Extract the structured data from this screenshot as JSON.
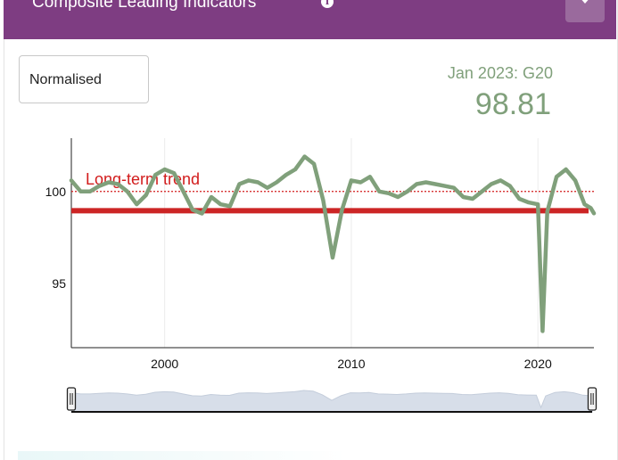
{
  "header": {
    "title": "Composite Leading Indicators",
    "info_icon": "info-icon",
    "toggle_icon": "chevron-down-icon",
    "background_color": "#7e3d82"
  },
  "controls": {
    "mode_select_value": "Normalised"
  },
  "readout": {
    "label": "Jan 2023: G20",
    "value": "98.81",
    "color": "#80a07b"
  },
  "chart_data": {
    "type": "line",
    "series": [
      {
        "color": "#80a07b",
        "points": [
          [
            1995.0,
            100.6
          ],
          [
            1995.5,
            100.0
          ],
          [
            1996.0,
            100.0
          ],
          [
            1996.5,
            100.3
          ],
          [
            1997.0,
            100.5
          ],
          [
            1997.5,
            100.4
          ],
          [
            1998.0,
            100.0
          ],
          [
            1998.5,
            99.3
          ],
          [
            1999.0,
            99.8
          ],
          [
            1999.5,
            100.9
          ],
          [
            2000.0,
            101.2
          ],
          [
            2000.5,
            101.0
          ],
          [
            2001.0,
            100.0
          ],
          [
            2001.5,
            99.0
          ],
          [
            2002.0,
            98.8
          ],
          [
            2002.5,
            99.7
          ],
          [
            2003.0,
            99.3
          ],
          [
            2003.5,
            99.2
          ],
          [
            2004.0,
            100.4
          ],
          [
            2004.5,
            100.6
          ],
          [
            2005.0,
            100.5
          ],
          [
            2005.5,
            100.2
          ],
          [
            2006.0,
            100.5
          ],
          [
            2006.5,
            100.9
          ],
          [
            2007.0,
            101.2
          ],
          [
            2007.5,
            101.9
          ],
          [
            2008.0,
            101.5
          ],
          [
            2008.5,
            99.5
          ],
          [
            2009.0,
            96.4
          ],
          [
            2009.5,
            99.0
          ],
          [
            2010.0,
            100.6
          ],
          [
            2010.5,
            100.5
          ],
          [
            2011.0,
            100.8
          ],
          [
            2011.5,
            100.0
          ],
          [
            2012.0,
            99.9
          ],
          [
            2012.5,
            99.7
          ],
          [
            2013.0,
            100.0
          ],
          [
            2013.5,
            100.4
          ],
          [
            2014.0,
            100.5
          ],
          [
            2014.5,
            100.4
          ],
          [
            2015.0,
            100.3
          ],
          [
            2015.5,
            100.2
          ],
          [
            2016.0,
            99.7
          ],
          [
            2016.5,
            99.6
          ],
          [
            2017.0,
            100.0
          ],
          [
            2017.5,
            100.4
          ],
          [
            2018.0,
            100.6
          ],
          [
            2018.5,
            100.3
          ],
          [
            2019.0,
            99.6
          ],
          [
            2019.5,
            99.4
          ],
          [
            2020.0,
            99.3
          ],
          [
            2020.25,
            92.4
          ],
          [
            2020.5,
            98.9
          ],
          [
            2021.0,
            100.8
          ],
          [
            2021.5,
            101.2
          ],
          [
            2022.0,
            100.6
          ],
          [
            2022.5,
            99.3
          ],
          [
            2022.83,
            99.1
          ],
          [
            2023.0,
            98.81
          ]
        ]
      }
    ],
    "reference_lines": [
      {
        "label": "Long-term trend",
        "y": 100,
        "style": "dotted",
        "color": "#d21c1c"
      }
    ],
    "reference_band_y": 98.95,
    "x_ticks": [
      "2000",
      "2010",
      "2020"
    ],
    "x_tick_values": [
      2000,
      2010,
      2020
    ],
    "y_ticks": [
      "100",
      "95"
    ],
    "y_tick_values": [
      100,
      95
    ],
    "xlim": [
      1995,
      2023
    ],
    "ylim": [
      91.5,
      102.9
    ],
    "grid": "vertical lines at x ticks",
    "navigator": {
      "range_start": 1995,
      "range_end": 2023
    }
  }
}
